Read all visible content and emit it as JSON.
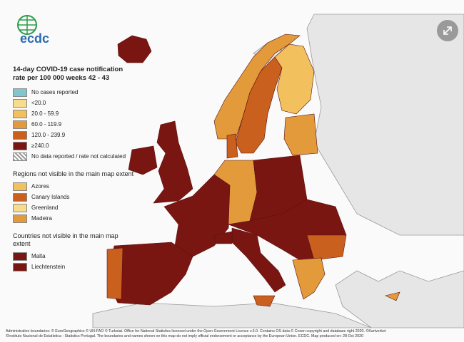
{
  "logo": "ecdc",
  "title": "14-day COVID-19 case notification rate per 100 000 weeks 42 - 43",
  "legend": [
    {
      "label": "No cases reported",
      "color": "#7fc6cf"
    },
    {
      "label": "<20.0",
      "color": "#f6dc8c"
    },
    {
      "label": "20.0 - 59.9",
      "color": "#f2c15e"
    },
    {
      "label": "60.0 - 119.9",
      "color": "#e39a3b"
    },
    {
      "label": "120.0 - 239.9",
      "color": "#c9601e"
    },
    {
      "label": "≥240.0",
      "color": "#7a1612"
    },
    {
      "label": "No data reported / rate not calculated",
      "color": "#9a9a9a"
    }
  ],
  "regions_heading": "Regions not visible in the main map extent",
  "regions": [
    {
      "label": "Azores",
      "color": "#f2c15e"
    },
    {
      "label": "Canary Islands",
      "color": "#c9601e"
    },
    {
      "label": "Greenland",
      "color": "#f6dc8c"
    },
    {
      "label": "Madeira",
      "color": "#e39a3b"
    }
  ],
  "countries_heading": "Countries not visible in the main map extent",
  "countries": [
    {
      "label": "Malta",
      "color": "#7a1612"
    },
    {
      "label": "Liechtenstein",
      "color": "#7a1612"
    }
  ],
  "footer": [
    "Administrative boundaries: © EuroGeographics © UN-FAO © Turkstat. Office for National Statistics licensed under the Open Government Licence v.3.0. Contains OS data © Crown copyright and database right 2020. ©Kartverket",
    "©Instituto Nacional de Estatística - Statistics Portugal. The boundaries and names shown on this map do not imply official endorsement or acceptance by the European Union. ECDC. Map produced on: 28 Oct 2020"
  ]
}
